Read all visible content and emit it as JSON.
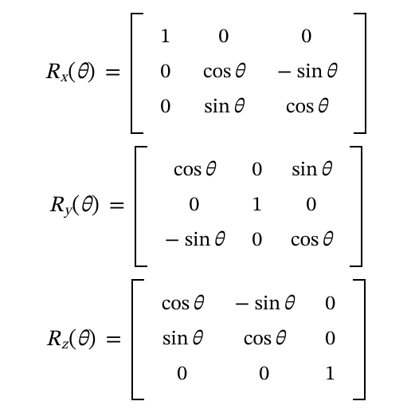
{
  "symbols": {
    "R": "R",
    "theta": "θ",
    "lparen": "(",
    "rparen": ")",
    "equals": "=",
    "cos": "cos",
    "sin": "sin",
    "minus": "−",
    "zero": "0",
    "one": "1"
  },
  "equations": [
    {
      "subscript": "x",
      "matrix_class": "m-rx",
      "cells": [
        {
          "type": "num",
          "value": "one"
        },
        {
          "type": "num",
          "value": "zero"
        },
        {
          "type": "num",
          "value": "zero"
        },
        {
          "type": "num",
          "value": "zero"
        },
        {
          "type": "trig",
          "fn": "cos",
          "sign": ""
        },
        {
          "type": "trig",
          "fn": "sin",
          "sign": "neg"
        },
        {
          "type": "num",
          "value": "zero"
        },
        {
          "type": "trig",
          "fn": "sin",
          "sign": ""
        },
        {
          "type": "trig",
          "fn": "cos",
          "sign": ""
        }
      ]
    },
    {
      "subscript": "y",
      "matrix_class": "m-ry",
      "cells": [
        {
          "type": "trig",
          "fn": "cos",
          "sign": ""
        },
        {
          "type": "num",
          "value": "zero"
        },
        {
          "type": "trig",
          "fn": "sin",
          "sign": ""
        },
        {
          "type": "num",
          "value": "zero"
        },
        {
          "type": "num",
          "value": "one"
        },
        {
          "type": "num",
          "value": "zero"
        },
        {
          "type": "trig",
          "fn": "sin",
          "sign": "neg"
        },
        {
          "type": "num",
          "value": "zero"
        },
        {
          "type": "trig",
          "fn": "cos",
          "sign": ""
        }
      ]
    },
    {
      "subscript": "z",
      "matrix_class": "m-rz",
      "cells": [
        {
          "type": "trig",
          "fn": "cos",
          "sign": ""
        },
        {
          "type": "trig",
          "fn": "sin",
          "sign": "neg"
        },
        {
          "type": "num",
          "value": "zero"
        },
        {
          "type": "trig",
          "fn": "sin",
          "sign": ""
        },
        {
          "type": "trig",
          "fn": "cos",
          "sign": ""
        },
        {
          "type": "num",
          "value": "zero"
        },
        {
          "type": "num",
          "value": "zero"
        },
        {
          "type": "num",
          "value": "zero"
        },
        {
          "type": "num",
          "value": "one"
        }
      ]
    }
  ]
}
